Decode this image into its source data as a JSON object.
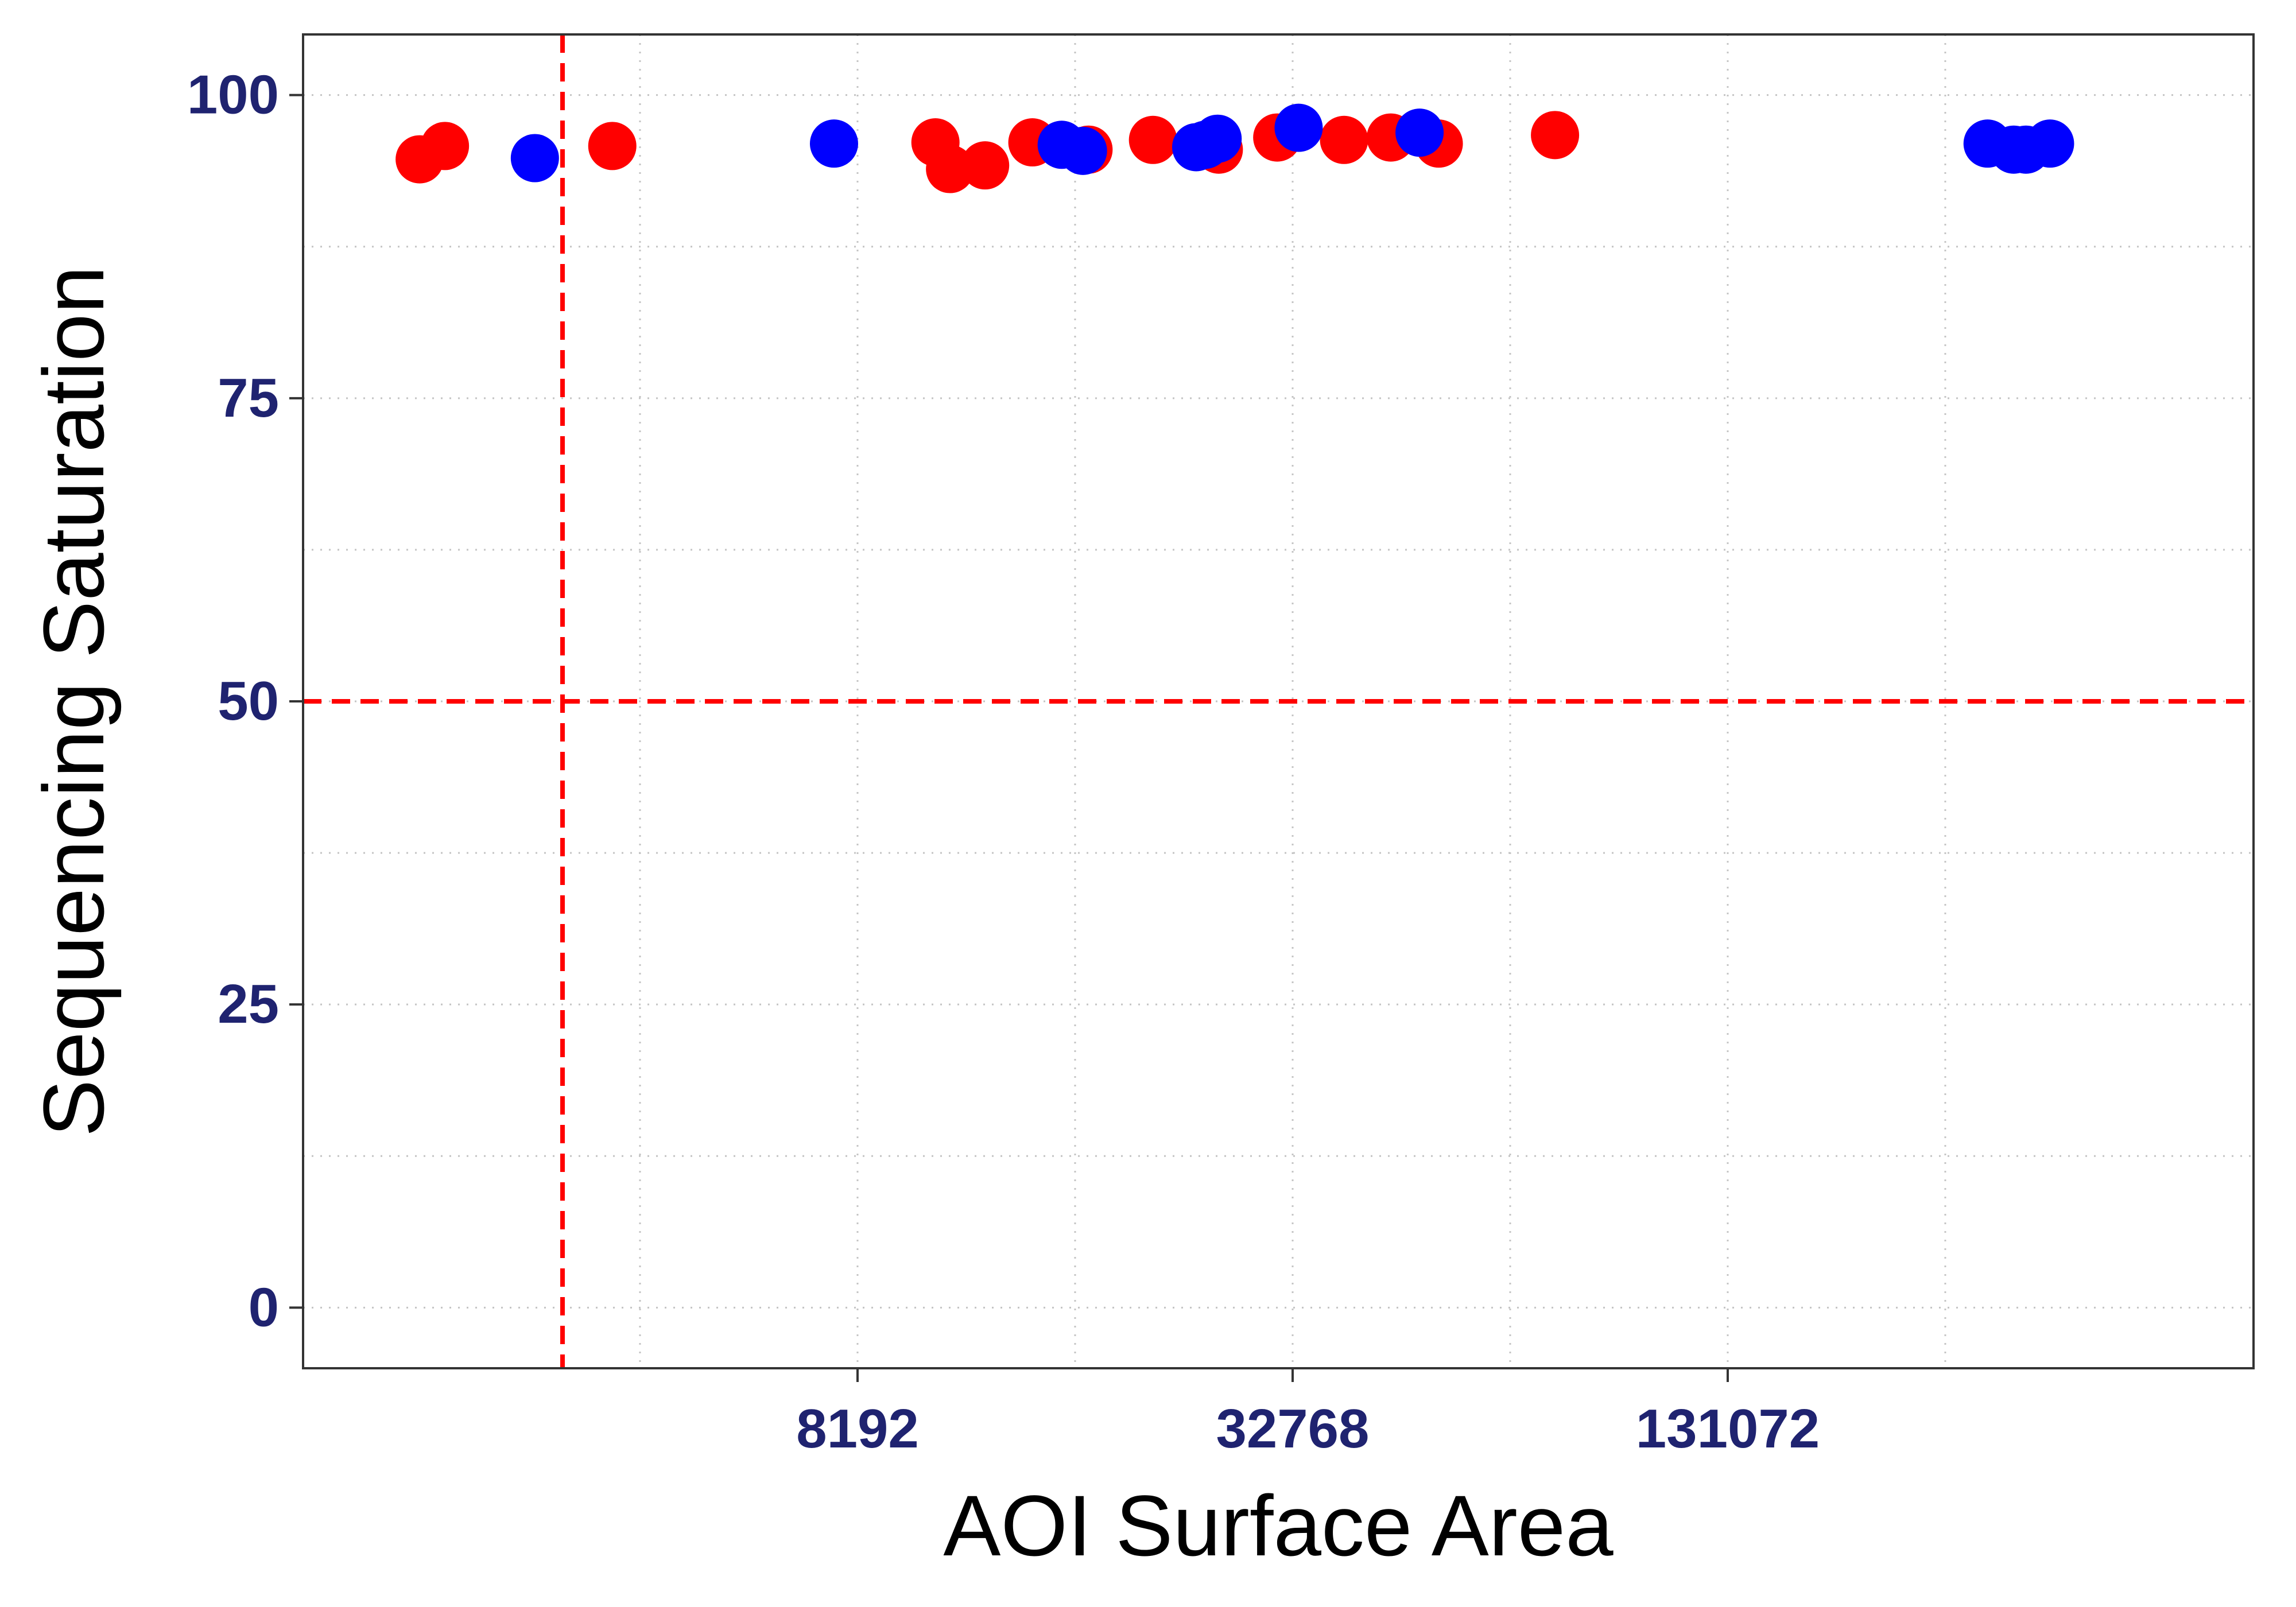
{
  "chart_data": {
    "type": "scatter",
    "title": "",
    "xlabel": "AOI Surface Area",
    "ylabel": "Sequencing Saturation",
    "x_scale": "log2",
    "xlim": [
      1400,
      700000
    ],
    "ylim": [
      -5,
      105
    ],
    "x_ticks": [
      8192,
      32768,
      131072
    ],
    "x_tick_labels": [
      "8192",
      "32768",
      "131072"
    ],
    "y_ticks": [
      0,
      25,
      50,
      75,
      100
    ],
    "y_tick_labels": [
      "0",
      "25",
      "50",
      "75",
      "100"
    ],
    "grid": true,
    "reference_lines": {
      "x": 3200,
      "y": 50,
      "color": "#ff0000",
      "style": "dashed"
    },
    "tick_label_color": "#1f2370",
    "series": [
      {
        "color": "#ff0000",
        "points": [
          {
            "x": 2030,
            "y": 94.7
          },
          {
            "x": 2200,
            "y": 95.8
          },
          {
            "x": 3750,
            "y": 95.8
          },
          {
            "x": 10500,
            "y": 96.1
          },
          {
            "x": 11000,
            "y": 93.9
          },
          {
            "x": 12300,
            "y": 94.2
          },
          {
            "x": 14300,
            "y": 96.1
          },
          {
            "x": 17100,
            "y": 95.5
          },
          {
            "x": 21000,
            "y": 96.3
          },
          {
            "x": 25900,
            "y": 95.5
          },
          {
            "x": 31200,
            "y": 96.5
          },
          {
            "x": 38600,
            "y": 96.3
          },
          {
            "x": 44800,
            "y": 96.5
          },
          {
            "x": 52200,
            "y": 96.0
          },
          {
            "x": 75600,
            "y": 96.7
          }
        ]
      },
      {
        "color": "#0000ff",
        "points": [
          {
            "x": 2930,
            "y": 94.8
          },
          {
            "x": 7600,
            "y": 96.0
          },
          {
            "x": 15700,
            "y": 95.9
          },
          {
            "x": 16800,
            "y": 95.4
          },
          {
            "x": 24100,
            "y": 95.7
          },
          {
            "x": 24800,
            "y": 95.9
          },
          {
            "x": 25800,
            "y": 96.4
          },
          {
            "x": 33400,
            "y": 97.3
          },
          {
            "x": 49100,
            "y": 96.9
          },
          {
            "x": 300000,
            "y": 96.0
          },
          {
            "x": 326000,
            "y": 95.5
          },
          {
            "x": 339000,
            "y": 95.5
          },
          {
            "x": 366000,
            "y": 96.0
          }
        ]
      }
    ]
  }
}
